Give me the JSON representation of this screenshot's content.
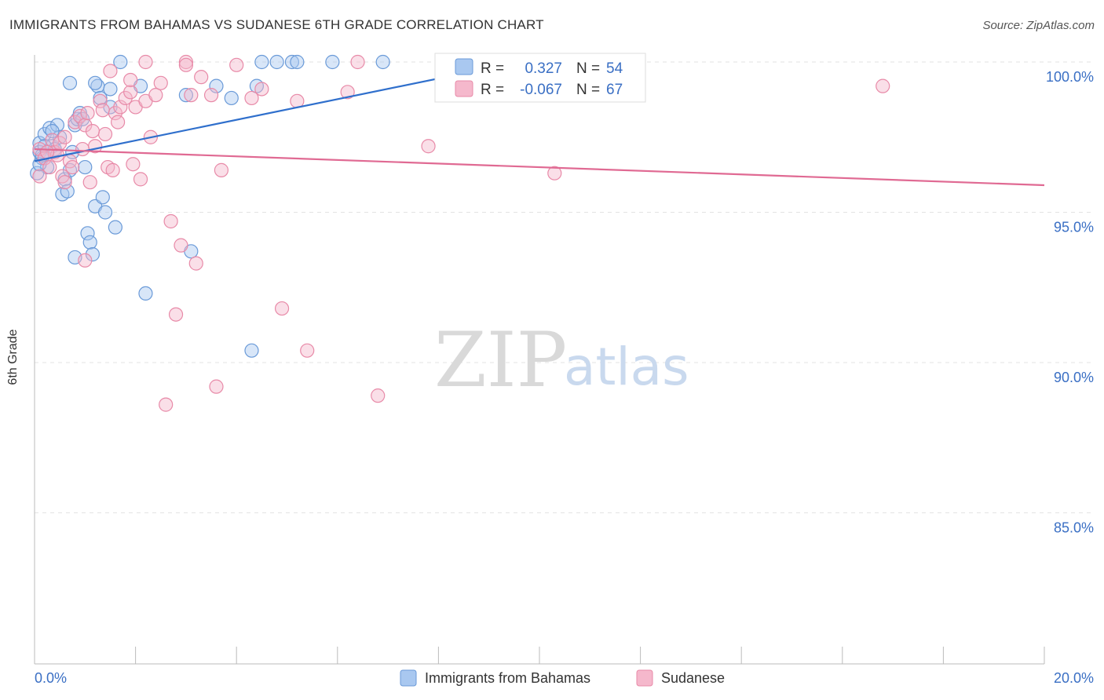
{
  "chart_data": {
    "type": "scatter",
    "title": "IMMIGRANTS FROM BAHAMAS VS SUDANESE 6TH GRADE CORRELATION CHART",
    "source": "Source: ZipAtlas.com",
    "xlabel": "",
    "ylabel": "6th Grade",
    "xlim": [
      0,
      20
    ],
    "ylim": [
      80.5,
      100.8
    ],
    "x_tick_labels": [
      "0.0%",
      "20.0%"
    ],
    "y_ticks": [
      {
        "value": 100,
        "label": "100.0%"
      },
      {
        "value": 95,
        "label": "95.0%"
      },
      {
        "value": 90,
        "label": "90.0%"
      },
      {
        "value": 85,
        "label": "85.0%"
      }
    ],
    "grid": true,
    "watermark": {
      "zip": "ZIP",
      "atlas": "atlas"
    },
    "series": [
      {
        "name": "Immigrants from Bahamas",
        "color": "#a9c8f0",
        "stroke": "#6a9ad8",
        "trend_color": "#2f6fcc",
        "R": "0.327",
        "N": "54",
        "trend": {
          "x": [
            0.0,
            9.6
          ],
          "y": [
            96.7,
            100.0
          ]
        },
        "points": [
          [
            0.1,
            97.3
          ],
          [
            0.1,
            97.0
          ],
          [
            0.15,
            96.8
          ],
          [
            0.2,
            97.6
          ],
          [
            0.25,
            96.5
          ],
          [
            0.3,
            97.8
          ],
          [
            0.35,
            97.2
          ],
          [
            0.4,
            97.1
          ],
          [
            0.45,
            97.9
          ],
          [
            0.5,
            97.5
          ],
          [
            0.55,
            95.6
          ],
          [
            0.6,
            96.1
          ],
          [
            0.65,
            95.7
          ],
          [
            0.7,
            96.4
          ],
          [
            0.75,
            97.0
          ],
          [
            0.8,
            97.9
          ],
          [
            0.85,
            98.1
          ],
          [
            0.9,
            98.3
          ],
          [
            0.95,
            98.1
          ],
          [
            1.0,
            96.5
          ],
          [
            1.05,
            94.3
          ],
          [
            1.1,
            94.0
          ],
          [
            1.15,
            93.6
          ],
          [
            1.2,
            95.2
          ],
          [
            1.25,
            99.2
          ],
          [
            1.3,
            98.8
          ],
          [
            1.35,
            95.5
          ],
          [
            1.4,
            95.0
          ],
          [
            1.5,
            98.5
          ],
          [
            1.6,
            94.5
          ],
          [
            1.7,
            100.0
          ],
          [
            2.1,
            99.2
          ],
          [
            2.2,
            92.3
          ],
          [
            3.0,
            98.9
          ],
          [
            3.1,
            93.7
          ],
          [
            3.6,
            99.2
          ],
          [
            3.9,
            98.8
          ],
          [
            4.3,
            90.4
          ],
          [
            4.4,
            99.2
          ],
          [
            4.5,
            100.0
          ],
          [
            4.8,
            100.0
          ],
          [
            5.1,
            100.0
          ],
          [
            5.2,
            100.0
          ],
          [
            5.9,
            100.0
          ],
          [
            6.9,
            100.0
          ],
          [
            0.05,
            96.3
          ],
          [
            0.1,
            96.6
          ],
          [
            0.15,
            96.9
          ],
          [
            0.2,
            97.2
          ],
          [
            0.35,
            97.7
          ],
          [
            0.7,
            99.3
          ],
          [
            0.8,
            93.5
          ],
          [
            1.2,
            99.3
          ],
          [
            1.5,
            99.1
          ]
        ]
      },
      {
        "name": "Sudanese",
        "color": "#f5b8cc",
        "stroke": "#e88aa8",
        "trend_color": "#e06a93",
        "R": "-0.067",
        "N": "67",
        "trend": {
          "x": [
            0.0,
            20.0
          ],
          "y": [
            97.1,
            95.9
          ]
        },
        "points": [
          [
            0.1,
            97.1
          ],
          [
            0.2,
            96.8
          ],
          [
            0.3,
            96.5
          ],
          [
            0.35,
            97.4
          ],
          [
            0.4,
            97.0
          ],
          [
            0.45,
            96.9
          ],
          [
            0.5,
            97.3
          ],
          [
            0.55,
            96.2
          ],
          [
            0.6,
            96.0
          ],
          [
            0.7,
            96.7
          ],
          [
            0.8,
            98.0
          ],
          [
            0.9,
            98.2
          ],
          [
            0.95,
            97.1
          ],
          [
            1.0,
            97.9
          ],
          [
            1.05,
            98.3
          ],
          [
            1.1,
            96.0
          ],
          [
            1.2,
            97.2
          ],
          [
            1.3,
            98.7
          ],
          [
            1.35,
            98.4
          ],
          [
            1.4,
            97.6
          ],
          [
            1.45,
            96.5
          ],
          [
            1.5,
            99.7
          ],
          [
            1.55,
            96.4
          ],
          [
            1.6,
            98.3
          ],
          [
            1.65,
            98.0
          ],
          [
            1.7,
            98.5
          ],
          [
            1.8,
            98.8
          ],
          [
            1.9,
            99.0
          ],
          [
            1.95,
            96.6
          ],
          [
            2.0,
            98.5
          ],
          [
            2.1,
            96.1
          ],
          [
            2.2,
            98.7
          ],
          [
            2.3,
            97.5
          ],
          [
            2.4,
            98.9
          ],
          [
            2.5,
            99.3
          ],
          [
            2.6,
            88.6
          ],
          [
            2.7,
            94.7
          ],
          [
            2.8,
            91.6
          ],
          [
            2.9,
            93.9
          ],
          [
            3.0,
            100.0
          ],
          [
            3.1,
            98.9
          ],
          [
            3.2,
            93.3
          ],
          [
            3.3,
            99.5
          ],
          [
            3.5,
            98.9
          ],
          [
            3.6,
            89.2
          ],
          [
            3.7,
            96.4
          ],
          [
            4.0,
            99.9
          ],
          [
            4.3,
            98.8
          ],
          [
            4.5,
            99.1
          ],
          [
            4.9,
            91.8
          ],
          [
            5.2,
            98.7
          ],
          [
            5.4,
            90.4
          ],
          [
            6.2,
            99.0
          ],
          [
            6.4,
            100.0
          ],
          [
            6.8,
            88.9
          ],
          [
            7.8,
            97.2
          ],
          [
            10.3,
            96.3
          ],
          [
            16.8,
            99.2
          ],
          [
            1.15,
            97.7
          ],
          [
            0.25,
            97.0
          ],
          [
            0.75,
            96.5
          ],
          [
            1.9,
            99.4
          ],
          [
            2.2,
            100.0
          ],
          [
            3.0,
            99.9
          ],
          [
            0.1,
            96.2
          ],
          [
            0.6,
            97.5
          ],
          [
            1.0,
            93.4
          ]
        ]
      }
    ]
  }
}
